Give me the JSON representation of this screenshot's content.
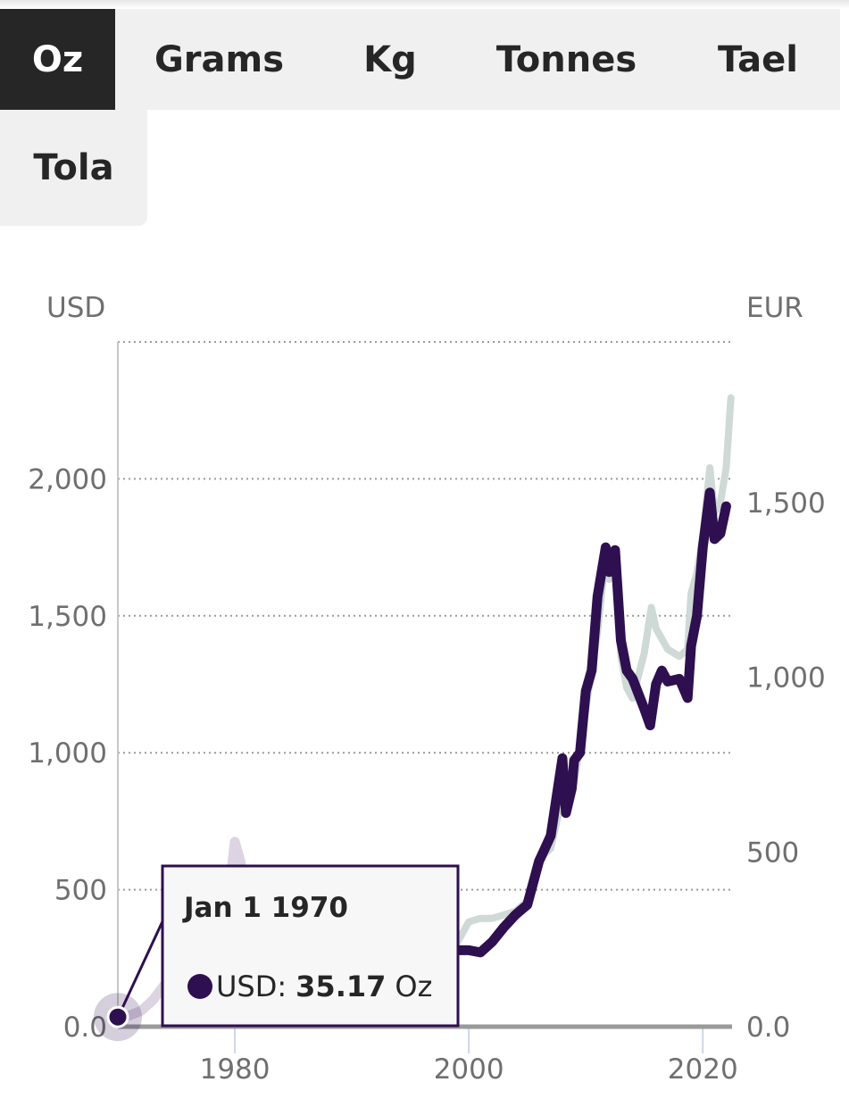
{
  "units_tabs": [
    {
      "label": "Oz",
      "active": true
    },
    {
      "label": "Grams",
      "active": false
    },
    {
      "label": "Kg",
      "active": false
    },
    {
      "label": "Tonnes",
      "active": false
    },
    {
      "label": "Tael",
      "active": false
    },
    {
      "label": "Tola",
      "active": false
    }
  ],
  "colors": {
    "usd_line": "#2e0f4f",
    "eur_line": "#cfd9d5",
    "highlight_faded": "#dcd3e3",
    "tab_active_bg": "#262626",
    "tab_bg": "#f0f0f0"
  },
  "tooltip": {
    "date": "Jan 1 1970",
    "series_label": "USD:",
    "value": "35.17",
    "unit": "Oz"
  },
  "chart_data": {
    "type": "line",
    "left_axis_label": "USD",
    "right_axis_label": "EUR",
    "y_left_ticks": [
      "0.0",
      "500",
      "1,000",
      "1,500",
      "2,000"
    ],
    "y_left_tick_values": [
      0,
      500,
      1000,
      1500,
      2000
    ],
    "y_right_ticks": [
      "0.0",
      "500",
      "1,000",
      "1,500"
    ],
    "y_right_tick_values": [
      0,
      500,
      1000,
      1500
    ],
    "x_ticks": [
      "1980",
      "2000",
      "2020"
    ],
    "x_tick_values": [
      1980,
      2000,
      2020
    ],
    "xlim": [
      1970,
      2022.5
    ],
    "ylim_left": [
      0,
      2500
    ],
    "ylim_right": [
      0,
      1960
    ],
    "grid": true,
    "highlight_x_range": [
      1970,
      1999
    ],
    "series": [
      {
        "name": "USD",
        "axis": "left",
        "x": [
          1970,
          1971,
          1972,
          1973,
          1974,
          1975,
          1976,
          1977,
          1978,
          1979,
          1980,
          1980.5,
          1981,
          1982,
          1983,
          1984,
          1985,
          1986,
          1987,
          1988,
          1989,
          1990,
          1991,
          1992,
          1993,
          1994,
          1995,
          1996,
          1997,
          1998,
          1999,
          2000,
          2001,
          2002,
          2003,
          2004,
          2005,
          2006,
          2006.5,
          2007,
          2008,
          2008.3,
          2008.8,
          2009,
          2009.5,
          2010,
          2010.5,
          2011,
          2011.7,
          2012,
          2012.5,
          2013,
          2013.5,
          2014,
          2015,
          2015.5,
          2016,
          2016.5,
          2017,
          2018,
          2018.7,
          2019,
          2019.5,
          2020,
          2020.6,
          2021,
          2021.5,
          2022
        ],
        "values": [
          35,
          41,
          58,
          97,
          154,
          161,
          125,
          148,
          193,
          306,
          675,
          600,
          460,
          376,
          424,
          361,
          317,
          368,
          447,
          437,
          381,
          383,
          362,
          344,
          360,
          384,
          384,
          388,
          331,
          294,
          279,
          279,
          271,
          310,
          363,
          409,
          445,
          604,
          650,
          697,
          980,
          780,
          870,
          972,
          1000,
          1225,
          1300,
          1570,
          1750,
          1660,
          1740,
          1410,
          1300,
          1270,
          1160,
          1100,
          1250,
          1300,
          1260,
          1270,
          1200,
          1390,
          1500,
          1750,
          1950,
          1780,
          1800,
          1900
        ]
      },
      {
        "name": "EUR",
        "axis": "right",
        "x": [
          1999,
          2000,
          2001,
          2002,
          2003,
          2004,
          2005,
          2006,
          2007,
          2008,
          2009,
          2010,
          2011,
          2011.7,
          2012,
          2012.5,
          2013,
          2013.5,
          2014,
          2015,
          2015.6,
          2016,
          2017,
          2018,
          2018.7,
          2019,
          2019.5,
          2020,
          2020.6,
          2021,
          2021.5,
          2022,
          2022.4
        ],
        "values": [
          240,
          300,
          310,
          310,
          320,
          330,
          360,
          480,
          510,
          660,
          700,
          910,
          1130,
          1350,
          1280,
          1340,
          1060,
          970,
          940,
          1070,
          1200,
          1140,
          1080,
          1060,
          1080,
          1240,
          1300,
          1400,
          1600,
          1470,
          1500,
          1600,
          1800
        ]
      }
    ],
    "tooltip_point": {
      "x": 1970,
      "y": 35.17
    }
  }
}
